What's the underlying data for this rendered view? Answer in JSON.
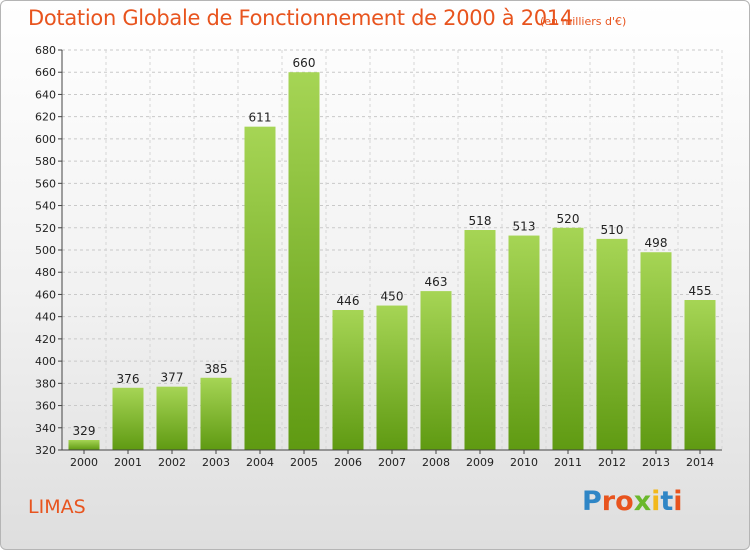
{
  "title": "Dotation Globale de Fonctionnement de 2000 à 2014",
  "subtitle": "(en milliers d'€)",
  "place": "LIMAS",
  "logo": {
    "letters": [
      "P",
      "r",
      "o",
      "x",
      "i",
      "t",
      "i"
    ],
    "colors": [
      "#2f86c6",
      "#e8541e",
      "#e8541e",
      "#6ab82c",
      "#f2b81c",
      "#2f86c6",
      "#e8541e"
    ]
  },
  "chart_data": {
    "type": "bar",
    "title": "Dotation Globale de Fonctionnement de 2000 à 2014",
    "subtitle": "(en milliers d'€)",
    "xlabel": "",
    "ylabel": "",
    "categories": [
      "2000",
      "2001",
      "2002",
      "2003",
      "2004",
      "2005",
      "2006",
      "2007",
      "2008",
      "2009",
      "2010",
      "2011",
      "2012",
      "2013",
      "2014"
    ],
    "values": [
      329,
      376,
      377,
      385,
      611,
      660,
      446,
      450,
      463,
      518,
      513,
      520,
      510,
      498,
      455
    ],
    "ylim": [
      320,
      680
    ],
    "yticks": [
      320,
      340,
      360,
      380,
      400,
      420,
      440,
      460,
      480,
      500,
      520,
      540,
      560,
      580,
      600,
      620,
      640,
      660,
      680
    ],
    "grid": true,
    "legend": "none",
    "bar_color_top": "#a6d555",
    "bar_color_bottom": "#5f9a12"
  }
}
